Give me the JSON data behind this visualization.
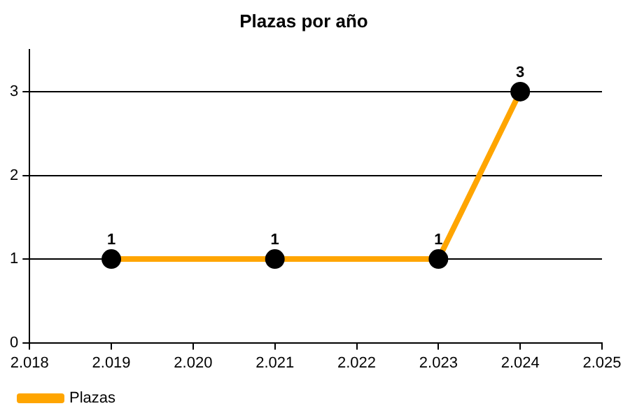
{
  "chart_data": {
    "type": "line",
    "title": "Plazas por año",
    "x": [
      2019,
      2021,
      2023,
      2024
    ],
    "series": [
      {
        "name": "Plazas",
        "color": "#ffa500",
        "values": [
          1,
          1,
          1,
          3
        ]
      }
    ],
    "xlim": [
      2018,
      2025
    ],
    "xticks": [
      {
        "value": 2018,
        "label": "2.018"
      },
      {
        "value": 2019,
        "label": "2.019"
      },
      {
        "value": 2020,
        "label": "2.020"
      },
      {
        "value": 2021,
        "label": "2.021"
      },
      {
        "value": 2022,
        "label": "2.022"
      },
      {
        "value": 2023,
        "label": "2.023"
      },
      {
        "value": 2024,
        "label": "2.024"
      },
      {
        "value": 2025,
        "label": "2.025"
      }
    ],
    "ylim": [
      0,
      3.5
    ],
    "yticks": [
      0,
      1,
      2,
      3
    ],
    "grid": "y",
    "legend": "bottom left",
    "marker": "circle",
    "line_style": "solid",
    "data_labels": true
  }
}
